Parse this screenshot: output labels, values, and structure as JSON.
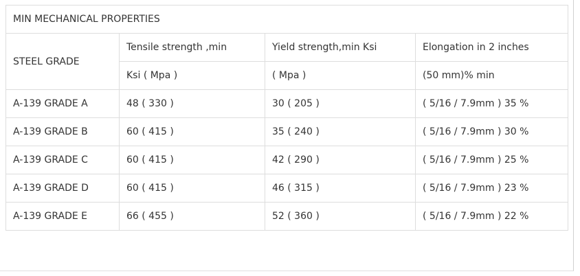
{
  "title": "MIN MECHANICAL PROPERTIES",
  "table": {
    "header": [
      [
        "STEEL GRADE",
        "Tensile strength ,min",
        "Yield strength,min Ksi",
        "Elongation in 2 inches"
      ],
      [
        "Ksi ( Mpa )",
        "( Mpa )",
        "(50 mm)% min"
      ]
    ],
    "rows": [
      [
        "A-139 GRADE A",
        "48 ( 330 )",
        "30 ( 205 )",
        "( 5/16 / 7.9mm ) 35 %"
      ],
      [
        "A-139 GRADE B",
        "60 ( 415 )",
        "35 ( 240 )",
        "( 5/16 / 7.9mm ) 30 %"
      ],
      [
        "A-139 GRADE C",
        "60 ( 415 )",
        "42 ( 290 )",
        "( 5/16 / 7.9mm ) 25 %"
      ],
      [
        "A-139 GRADE D",
        "60 ( 415 )",
        "46 ( 315 )",
        "( 5/16 / 7.9mm ) 23 %"
      ],
      [
        "A-139 GRADE E",
        "66 ( 455 )",
        "52 ( 360 )",
        "( 5/16 / 7.9mm ) 22 %"
      ]
    ]
  }
}
